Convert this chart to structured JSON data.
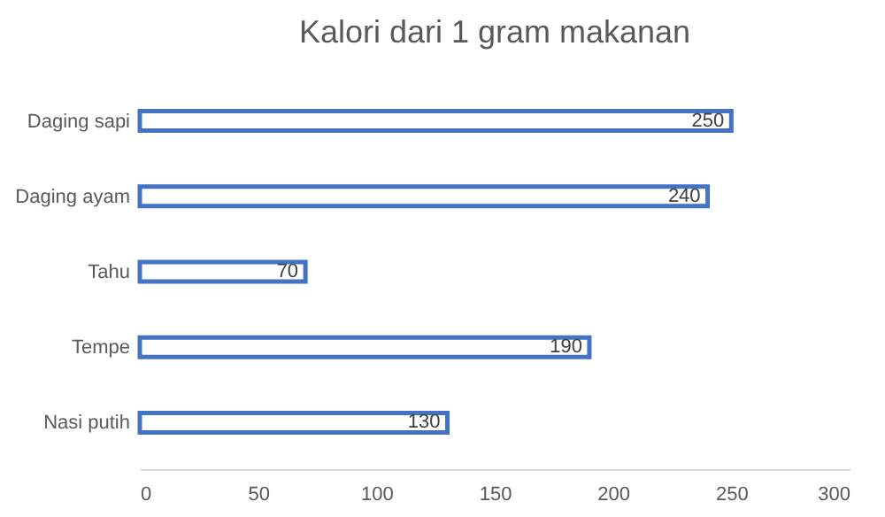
{
  "chart_data": {
    "type": "bar",
    "orientation": "horizontal",
    "title": "Kalori dari 1 gram makanan",
    "categories": [
      "Daging sapi",
      "Daging ayam",
      "Tahu",
      "Tempe",
      "Nasi putih"
    ],
    "values": [
      250,
      240,
      70,
      190,
      130
    ],
    "color": "#4472c4",
    "xlim": [
      0,
      300
    ],
    "xticks": [
      0,
      50,
      100,
      150,
      200,
      250,
      300
    ],
    "grid": false,
    "data_labels": true
  }
}
